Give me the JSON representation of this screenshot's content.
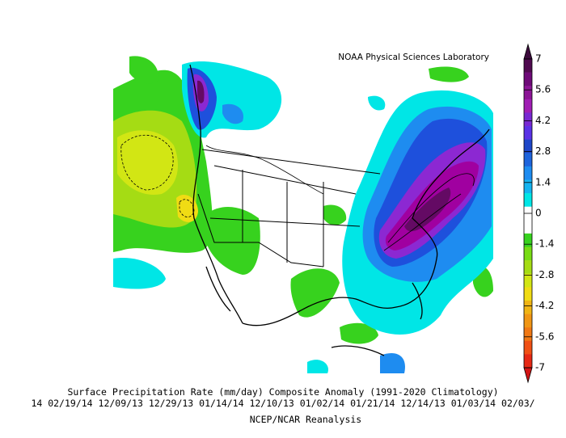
{
  "header": {
    "credit": "NOAA Physical Sciences Laboratory"
  },
  "colorbar": {
    "ticks": [
      7,
      5.6,
      4.2,
      2.8,
      1.4,
      0,
      -1.4,
      -2.8,
      -4.2,
      -5.6,
      -7
    ]
  },
  "footer": {
    "title": "Surface Precipitation Rate (mm/day) Composite Anomaly (1991-2020 Climatology)",
    "dates": "14 02/19/14 12/09/13 12/29/13 01/14/14 12/10/13 01/02/14 01/21/14 12/14/13 01/03/14 02/03/",
    "source": "NCEP/NCAR Reanalysis"
  }
}
